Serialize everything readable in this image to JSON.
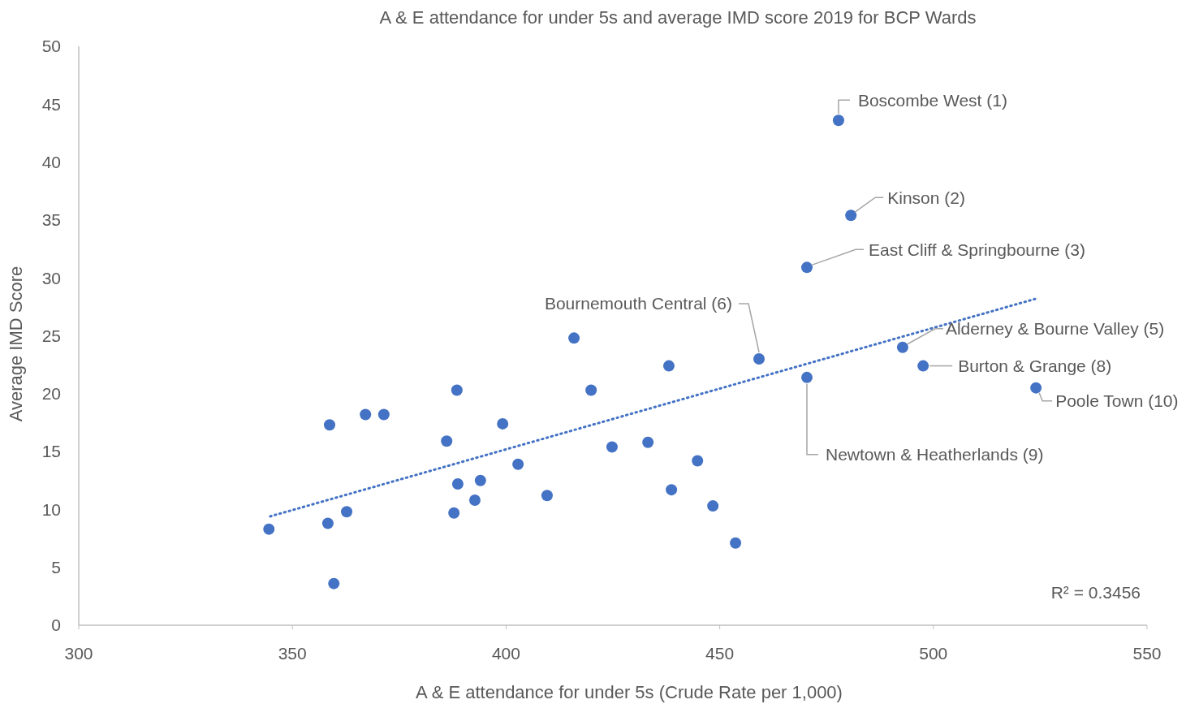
{
  "chart_data": {
    "type": "scatter",
    "title": "A & E attendance for under 5s and average IMD score 2019 for BCP Wards",
    "xlabel": "A & E attendance for under 5s (Crude Rate per 1,000)",
    "ylabel": "Average IMD Score",
    "xlim": [
      300,
      550
    ],
    "ylim": [
      0,
      50
    ],
    "xticks": [
      300,
      350,
      400,
      450,
      500,
      550
    ],
    "yticks": [
      0,
      5,
      10,
      15,
      20,
      25,
      30,
      35,
      40,
      45,
      50
    ],
    "grid": false,
    "marker": "circle",
    "series": [
      {
        "color": "#4472c4",
        "x": [
          477.8,
          480.7,
          470.4,
          459.2,
          492.8,
          497.6,
          524.0,
          470.4,
          415.9,
          438.1,
          388.5,
          419.9,
          358.7,
          367.1,
          371.4,
          399.2,
          386.1,
          424.8,
          433.2,
          402.8,
          444.8,
          388.7,
          394.0,
          392.7,
          387.8,
          409.6,
          438.7,
          448.4,
          453.7,
          344.5,
          358.3,
          362.7,
          359.7
        ],
        "values": [
          43.6,
          35.4,
          30.9,
          23.0,
          24.0,
          22.4,
          20.5,
          21.4,
          24.8,
          22.4,
          20.3,
          20.3,
          17.3,
          18.2,
          18.2,
          17.4,
          15.9,
          15.4,
          15.8,
          13.9,
          14.2,
          12.2,
          12.5,
          10.8,
          9.7,
          11.2,
          11.7,
          10.3,
          7.1,
          8.3,
          8.8,
          9.8,
          3.6
        ]
      },
      {
        "type": "line",
        "color": "#4472c4",
        "line_style": "dotted",
        "marker": "none",
        "x": [
          344.8,
          524.0
        ],
        "values": [
          9.4,
          28.2
        ]
      }
    ],
    "annotations": [
      {
        "text": "Boscombe West (1)",
        "x": 477.8,
        "y": 43.6
      },
      {
        "text": "Kinson (2)",
        "x": 480.7,
        "y": 35.4
      },
      {
        "text": "East Cliff & Springbourne (3)",
        "x": 470.4,
        "y": 30.9
      },
      {
        "text": "Bournemouth Central (6)",
        "x": 459.2,
        "y": 23.0
      },
      {
        "text": "Alderney & Bourne Valley (5)",
        "x": 492.8,
        "y": 24.0
      },
      {
        "text": "Burton & Grange (8)",
        "x": 497.6,
        "y": 22.4
      },
      {
        "text": "Poole Town (10)",
        "x": 524.0,
        "y": 20.5
      },
      {
        "text": "Newtown & Heatherlands (9)",
        "x": 470.4,
        "y": 21.4
      },
      "R² = 0.3456"
    ]
  }
}
